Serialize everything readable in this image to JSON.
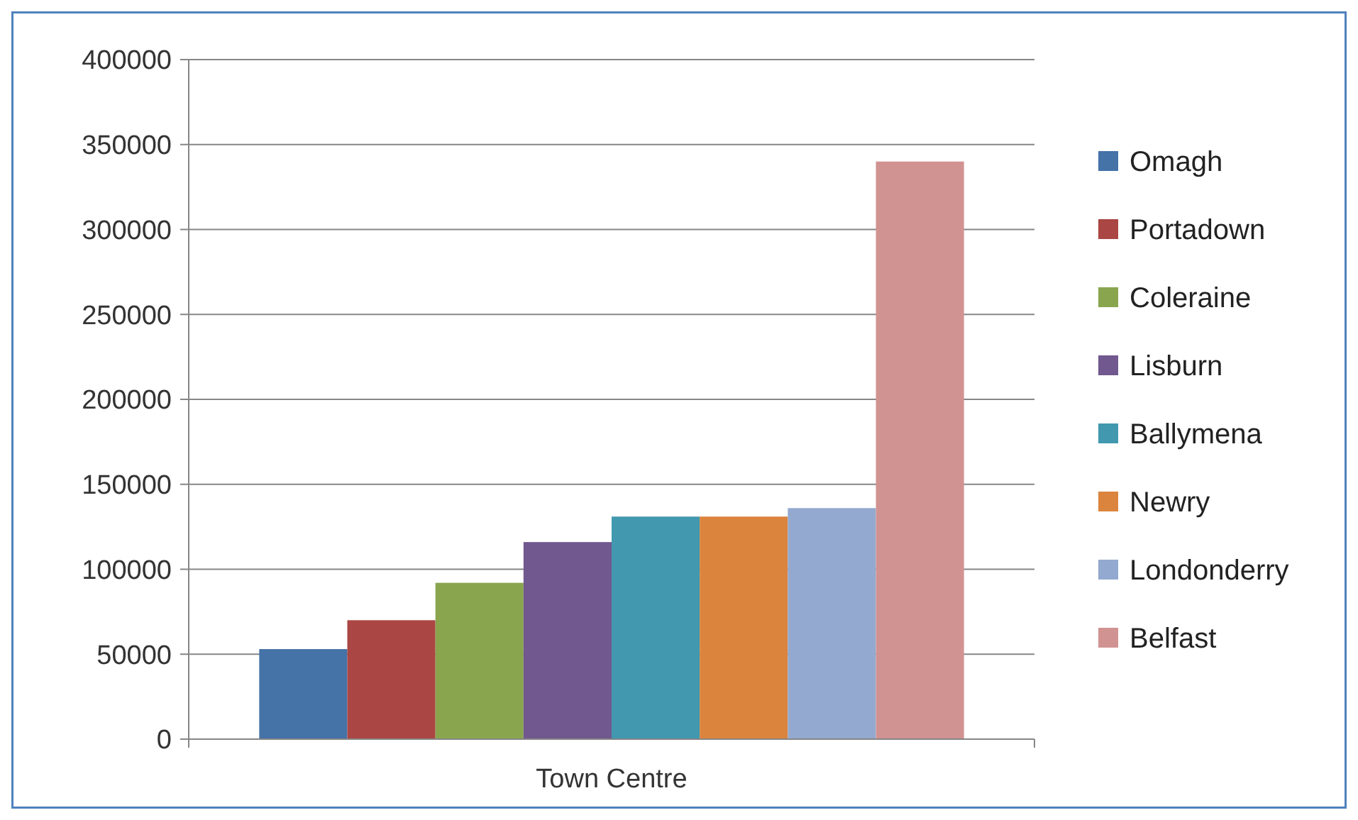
{
  "chart_data": {
    "type": "bar",
    "categories": [
      "Town Centre"
    ],
    "series": [
      {
        "name": "Omagh",
        "color": "#4572a7",
        "values": [
          53000
        ]
      },
      {
        "name": "Portadown",
        "color": "#aa4643",
        "values": [
          70000
        ]
      },
      {
        "name": "Coleraine",
        "color": "#89a54e",
        "values": [
          92000
        ]
      },
      {
        "name": "Lisburn",
        "color": "#71588f",
        "values": [
          116000
        ]
      },
      {
        "name": "Ballymena",
        "color": "#4198af",
        "values": [
          131000
        ]
      },
      {
        "name": "Newry",
        "color": "#db843d",
        "values": [
          131000
        ]
      },
      {
        "name": "Londonderry",
        "color": "#93a9cf",
        "values": [
          136000
        ]
      },
      {
        "name": "Belfast",
        "color": "#d19392",
        "values": [
          340000
        ]
      }
    ],
    "ylim": [
      0,
      400000
    ],
    "yticks": [
      0,
      50000,
      100000,
      150000,
      200000,
      250000,
      300000,
      350000,
      400000
    ],
    "grid": "y",
    "legend": "right"
  }
}
